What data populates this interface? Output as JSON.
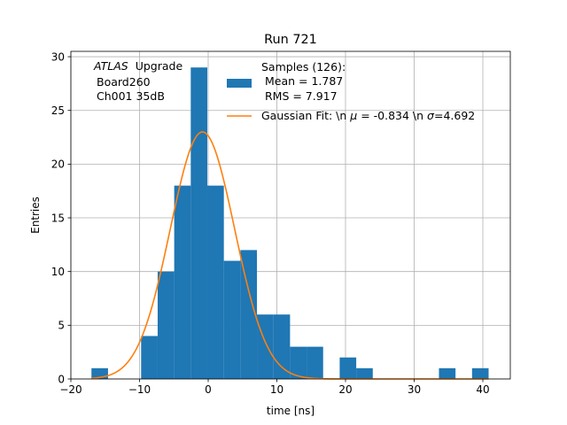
{
  "chart_data": {
    "type": "bar",
    "title": "Run 721",
    "xlabel": "time [ns]",
    "ylabel": "Entries",
    "xlim": [
      -20,
      44
    ],
    "ylim": [
      0,
      30.5
    ],
    "grid": true,
    "legend_placement": "top-right",
    "xticks": [
      -20,
      -10,
      0,
      10,
      20,
      30,
      40
    ],
    "xtick_labels": [
      "−20",
      "−10",
      "0",
      "10",
      "20",
      "30",
      "40"
    ],
    "yticks": [
      0,
      5,
      10,
      15,
      20,
      25,
      30
    ],
    "ytick_labels": [
      "0",
      "5",
      "10",
      "15",
      "20",
      "25",
      "30"
    ],
    "annotation": {
      "atlas": "ATLAS",
      "upgrade": "Upgrade",
      "line2": "Board260",
      "line3": "Ch001 35dB"
    },
    "bin_width": 2.41,
    "histogram": {
      "name": "Samples (126):",
      "color": "#1f77b4",
      "bins": [
        {
          "x": -17.0,
          "count": 1
        },
        {
          "x": -9.77,
          "count": 4
        },
        {
          "x": -7.36,
          "count": 10
        },
        {
          "x": -4.95,
          "count": 18
        },
        {
          "x": -2.54,
          "count": 29
        },
        {
          "x": -0.13,
          "count": 18
        },
        {
          "x": 2.28,
          "count": 11
        },
        {
          "x": 4.69,
          "count": 12
        },
        {
          "x": 7.1,
          "count": 6
        },
        {
          "x": 9.51,
          "count": 6
        },
        {
          "x": 11.92,
          "count": 3
        },
        {
          "x": 14.33,
          "count": 3
        },
        {
          "x": 19.15,
          "count": 2
        },
        {
          "x": 21.56,
          "count": 1
        },
        {
          "x": 33.61,
          "count": 1
        },
        {
          "x": 38.43,
          "count": 1
        }
      ]
    },
    "fit": {
      "color": "#ff7f0e",
      "mu": -0.834,
      "sigma": 4.692,
      "amplitude": 23,
      "x_range": [
        -17.0,
        40.84
      ]
    },
    "legend": {
      "hist_line1": "Samples (126):",
      "hist_line2": " Mean = 1.787",
      "hist_line3": " RMS = 7.917",
      "fit_prefix": "Gaussian Fit: \\n ",
      "fit_mu": "μ",
      "fit_mid": " = -0.834 \\n ",
      "fit_sigma": "σ",
      "fit_suffix": "=4.692"
    }
  }
}
